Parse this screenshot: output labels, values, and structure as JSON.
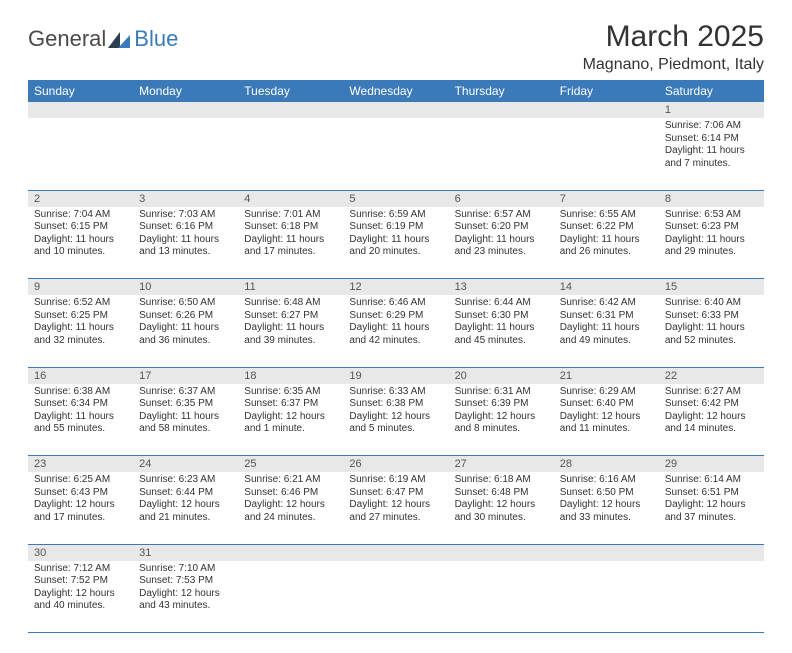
{
  "logo": {
    "general": "General",
    "blue": "Blue"
  },
  "title": "March 2025",
  "location": "Magnano, Piedmont, Italy",
  "colors": {
    "header_bg": "#3a7ab8",
    "header_text": "#ffffff",
    "daynum_bg": "#e8e8e8",
    "cell_border": "#3a7ab8",
    "text": "#333333"
  },
  "weekdays": [
    "Sunday",
    "Monday",
    "Tuesday",
    "Wednesday",
    "Thursday",
    "Friday",
    "Saturday"
  ],
  "weeks": [
    [
      null,
      null,
      null,
      null,
      null,
      null,
      {
        "n": "1",
        "sunrise": "7:06 AM",
        "sunset": "6:14 PM",
        "daylight": "11 hours and 7 minutes."
      }
    ],
    [
      {
        "n": "2",
        "sunrise": "7:04 AM",
        "sunset": "6:15 PM",
        "daylight": "11 hours and 10 minutes."
      },
      {
        "n": "3",
        "sunrise": "7:03 AM",
        "sunset": "6:16 PM",
        "daylight": "11 hours and 13 minutes."
      },
      {
        "n": "4",
        "sunrise": "7:01 AM",
        "sunset": "6:18 PM",
        "daylight": "11 hours and 17 minutes."
      },
      {
        "n": "5",
        "sunrise": "6:59 AM",
        "sunset": "6:19 PM",
        "daylight": "11 hours and 20 minutes."
      },
      {
        "n": "6",
        "sunrise": "6:57 AM",
        "sunset": "6:20 PM",
        "daylight": "11 hours and 23 minutes."
      },
      {
        "n": "7",
        "sunrise": "6:55 AM",
        "sunset": "6:22 PM",
        "daylight": "11 hours and 26 minutes."
      },
      {
        "n": "8",
        "sunrise": "6:53 AM",
        "sunset": "6:23 PM",
        "daylight": "11 hours and 29 minutes."
      }
    ],
    [
      {
        "n": "9",
        "sunrise": "6:52 AM",
        "sunset": "6:25 PM",
        "daylight": "11 hours and 32 minutes."
      },
      {
        "n": "10",
        "sunrise": "6:50 AM",
        "sunset": "6:26 PM",
        "daylight": "11 hours and 36 minutes."
      },
      {
        "n": "11",
        "sunrise": "6:48 AM",
        "sunset": "6:27 PM",
        "daylight": "11 hours and 39 minutes."
      },
      {
        "n": "12",
        "sunrise": "6:46 AM",
        "sunset": "6:29 PM",
        "daylight": "11 hours and 42 minutes."
      },
      {
        "n": "13",
        "sunrise": "6:44 AM",
        "sunset": "6:30 PM",
        "daylight": "11 hours and 45 minutes."
      },
      {
        "n": "14",
        "sunrise": "6:42 AM",
        "sunset": "6:31 PM",
        "daylight": "11 hours and 49 minutes."
      },
      {
        "n": "15",
        "sunrise": "6:40 AM",
        "sunset": "6:33 PM",
        "daylight": "11 hours and 52 minutes."
      }
    ],
    [
      {
        "n": "16",
        "sunrise": "6:38 AM",
        "sunset": "6:34 PM",
        "daylight": "11 hours and 55 minutes."
      },
      {
        "n": "17",
        "sunrise": "6:37 AM",
        "sunset": "6:35 PM",
        "daylight": "11 hours and 58 minutes."
      },
      {
        "n": "18",
        "sunrise": "6:35 AM",
        "sunset": "6:37 PM",
        "daylight": "12 hours and 1 minute."
      },
      {
        "n": "19",
        "sunrise": "6:33 AM",
        "sunset": "6:38 PM",
        "daylight": "12 hours and 5 minutes."
      },
      {
        "n": "20",
        "sunrise": "6:31 AM",
        "sunset": "6:39 PM",
        "daylight": "12 hours and 8 minutes."
      },
      {
        "n": "21",
        "sunrise": "6:29 AM",
        "sunset": "6:40 PM",
        "daylight": "12 hours and 11 minutes."
      },
      {
        "n": "22",
        "sunrise": "6:27 AM",
        "sunset": "6:42 PM",
        "daylight": "12 hours and 14 minutes."
      }
    ],
    [
      {
        "n": "23",
        "sunrise": "6:25 AM",
        "sunset": "6:43 PM",
        "daylight": "12 hours and 17 minutes."
      },
      {
        "n": "24",
        "sunrise": "6:23 AM",
        "sunset": "6:44 PM",
        "daylight": "12 hours and 21 minutes."
      },
      {
        "n": "25",
        "sunrise": "6:21 AM",
        "sunset": "6:46 PM",
        "daylight": "12 hours and 24 minutes."
      },
      {
        "n": "26",
        "sunrise": "6:19 AM",
        "sunset": "6:47 PM",
        "daylight": "12 hours and 27 minutes."
      },
      {
        "n": "27",
        "sunrise": "6:18 AM",
        "sunset": "6:48 PM",
        "daylight": "12 hours and 30 minutes."
      },
      {
        "n": "28",
        "sunrise": "6:16 AM",
        "sunset": "6:50 PM",
        "daylight": "12 hours and 33 minutes."
      },
      {
        "n": "29",
        "sunrise": "6:14 AM",
        "sunset": "6:51 PM",
        "daylight": "12 hours and 37 minutes."
      }
    ],
    [
      {
        "n": "30",
        "sunrise": "7:12 AM",
        "sunset": "7:52 PM",
        "daylight": "12 hours and 40 minutes."
      },
      {
        "n": "31",
        "sunrise": "7:10 AM",
        "sunset": "7:53 PM",
        "daylight": "12 hours and 43 minutes."
      },
      null,
      null,
      null,
      null,
      null
    ]
  ]
}
